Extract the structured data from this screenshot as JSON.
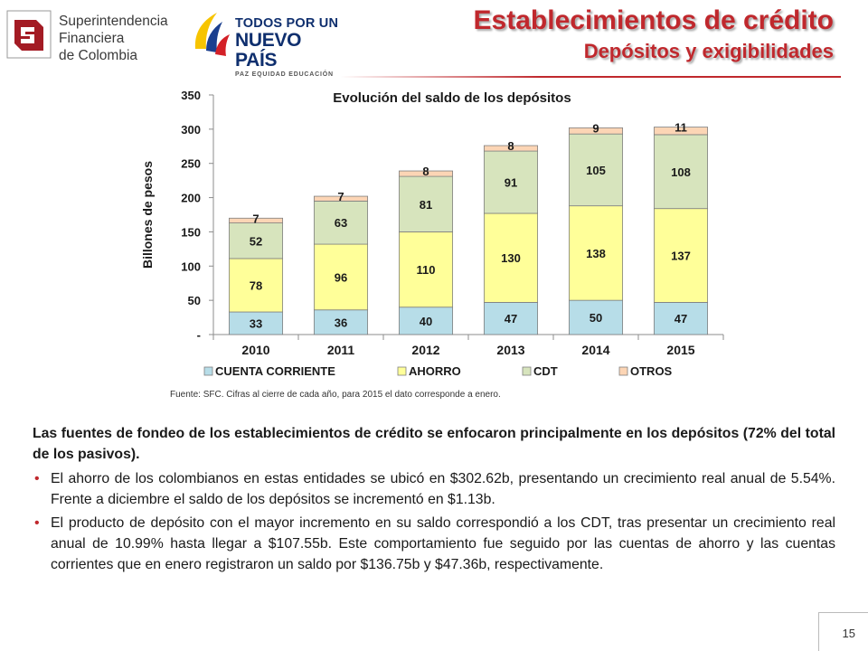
{
  "header": {
    "logo_sfc": {
      "lines": [
        "Superintendencia",
        "Financiera",
        "de Colombia"
      ]
    },
    "logo_gov": {
      "line1": "TODOS POR UN",
      "line2": "NUEVO PAÍS",
      "tagline": "PAZ  EQUIDAD  EDUCACIÓN"
    },
    "title": "Establecimientos de crédito",
    "subtitle": "Depósitos y exigibilidades",
    "accent_color": "#c0282d"
  },
  "chart_data": {
    "type": "bar",
    "stacked": true,
    "title": "Evolución del saldo de los depósitos",
    "ylabel": "Billones de pesos",
    "xlabel": "",
    "ylim": [
      0,
      350
    ],
    "yticks": [
      0,
      50,
      100,
      150,
      200,
      250,
      300,
      350
    ],
    "ytick_labels": [
      "-",
      "50",
      "100",
      "150",
      "200",
      "250",
      "300",
      "350"
    ],
    "grid": false,
    "legend_position": "bottom",
    "categories": [
      "2010",
      "2011",
      "2012",
      "2013",
      "2014",
      "2015"
    ],
    "series": [
      {
        "name": "CUENTA CORRIENTE",
        "color": "#b7dde8",
        "values": [
          33,
          36,
          40,
          47,
          50,
          47
        ]
      },
      {
        "name": "AHORRO",
        "color": "#ffff99",
        "values": [
          78,
          96,
          110,
          130,
          138,
          137
        ]
      },
      {
        "name": "CDT",
        "color": "#d7e4bd",
        "values": [
          52,
          63,
          81,
          91,
          105,
          108
        ]
      },
      {
        "name": "OTROS",
        "color": "#fcd5b5",
        "values": [
          7,
          7,
          8,
          8,
          9,
          11
        ]
      }
    ],
    "data_labels": [
      [
        "33",
        "36",
        "40",
        "47",
        "50",
        "47"
      ],
      [
        "78",
        "96",
        "110",
        "130",
        "138",
        "137"
      ],
      [
        "52",
        "63",
        "81",
        "91",
        "105",
        "108"
      ],
      [
        "7",
        "7",
        "8",
        "8",
        "9",
        "11"
      ]
    ]
  },
  "source_note": "Fuente: SFC. Cifras al cierre de cada año, para 2015 el dato corresponde a enero.",
  "body": {
    "lead": "Las fuentes de fondeo de los establecimientos de crédito se enfocaron principalmente en los depósitos (72% del total de los pasivos).",
    "bullets": [
      "El ahorro de los colombianos en estas entidades se ubicó en $302.62b, presentando un crecimiento real anual de 5.54%. Frente a diciembre el saldo de los depósitos se incrementó en $1.13b.",
      "El producto de depósito con el mayor incremento en su saldo correspondió a los CDT, tras presentar un crecimiento real anual de 10.99% hasta llegar a $107.55b. Este comportamiento fue seguido por las cuentas de ahorro y las cuentas corrientes que en enero registraron un saldo por $136.75b y $47.36b, respectivamente."
    ],
    "bullet_symbol": "•"
  },
  "footer": {
    "page_number": "15"
  }
}
